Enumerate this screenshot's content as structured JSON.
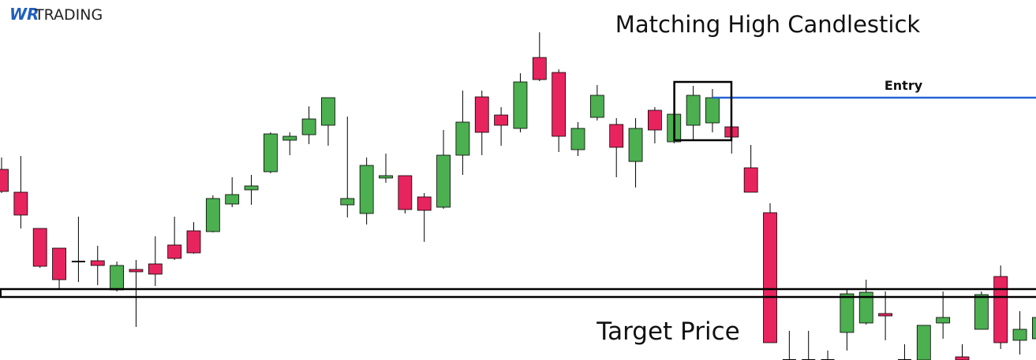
{
  "logo": {
    "mark": "WR",
    "text": "TRADING"
  },
  "chart_data": {
    "type": "candlestick",
    "title": "Matching High Candlestick",
    "annotations": {
      "entry": "Entry",
      "target": "Target Price"
    },
    "ylim": [
      0,
      457
    ],
    "up_color": "#4caf50",
    "down_color": "#e8245f",
    "entry_level": 333,
    "target_zone": [
      80,
      90
    ],
    "open": [
      242,
      213,
      167,
      142,
      125,
      126,
      89,
      115,
      122,
      146,
      164,
      163,
      198,
      216,
      239,
      279,
      286,
      298,
      197,
      186,
      231,
      234,
      207,
      194,
      260,
      334,
      311,
      294,
      384,
      365,
      267,
      308,
      299,
      252,
      317,
      277,
      298,
      301,
      296,
      244,
      187,
      0,
      0,
      0,
      35,
      47,
      59,
      0,
      0,
      47,
      4,
      39,
      106,
      25,
      27
    ],
    "high": [
      257,
      259,
      167,
      142,
      182,
      145,
      125,
      127,
      157,
      182,
      175,
      209,
      232,
      235,
      289,
      289,
      322,
      333,
      309,
      257,
      262,
      234,
      212,
      292,
      342,
      342,
      321,
      364,
      416,
      369,
      302,
      349,
      307,
      307,
      321,
      312,
      348,
      344,
      302,
      273,
      199,
      37,
      37,
      12,
      89,
      102,
      87,
      20,
      44,
      87,
      20,
      87,
      120,
      62,
      54
    ],
    "low": [
      212,
      167,
      117,
      89,
      99,
      95,
      87,
      42,
      94,
      127,
      135,
      162,
      194,
      197,
      237,
      260,
      274,
      272,
      181,
      172,
      225,
      186,
      150,
      192,
      235,
      260,
      272,
      289,
      354,
      264,
      259,
      304,
      232,
      219,
      275,
      275,
      279,
      289,
      262,
      213,
      22,
      0,
      0,
      0,
      12,
      45,
      25,
      0,
      0,
      27,
      0,
      39,
      14,
      7,
      0
    ],
    "close": [
      214,
      184,
      119,
      102,
      125,
      120,
      120,
      112,
      109,
      129,
      136,
      205,
      210,
      221,
      287,
      284,
      306,
      333,
      205,
      247,
      234,
      191,
      190,
      260,
      302,
      289,
      298,
      353,
      356,
      284,
      294,
      336,
      270,
      294,
      292,
      312,
      336,
      333,
      283,
      213,
      22,
      0,
      0,
      0,
      84,
      86,
      56,
      0,
      44,
      54,
      0,
      83,
      22,
      39,
      54
    ]
  }
}
